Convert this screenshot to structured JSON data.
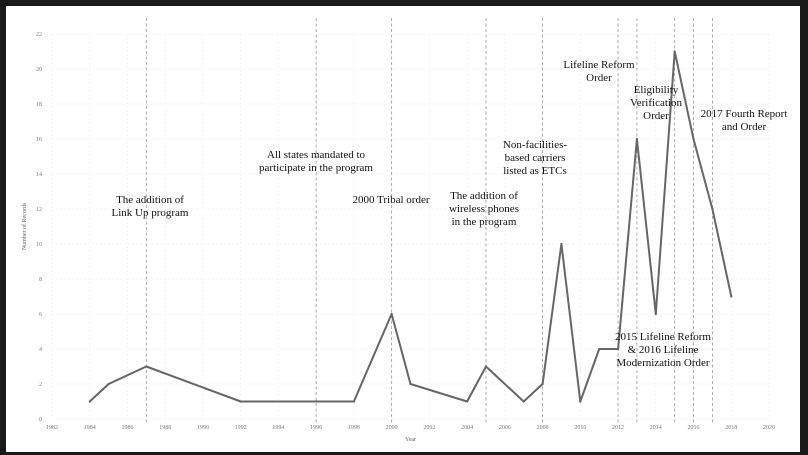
{
  "chart_data": {
    "type": "line",
    "xlabel": "Year",
    "ylabel": "Number of Records",
    "xlim": [
      1982,
      2020
    ],
    "ylim": [
      0,
      22
    ],
    "x_ticks": [
      1982,
      1984,
      1986,
      1988,
      1990,
      1992,
      1994,
      1996,
      1998,
      2000,
      2002,
      2004,
      2006,
      2008,
      2010,
      2012,
      2014,
      2016,
      2018,
      2020
    ],
    "y_ticks": [
      0,
      2,
      4,
      6,
      8,
      10,
      12,
      14,
      16,
      18,
      20,
      22
    ],
    "grid": true,
    "series_color": "#666666",
    "x": [
      1984,
      1985,
      1987,
      1992,
      1998,
      2000,
      2001,
      2004,
      2005,
      2007,
      2008,
      2009,
      2010,
      2011,
      2012,
      2013,
      2014,
      2015,
      2016,
      2017,
      2018
    ],
    "values": [
      1,
      2,
      3,
      1,
      1,
      6,
      2,
      1,
      3,
      1,
      2,
      10,
      1,
      4,
      4,
      16,
      6,
      21,
      16,
      12,
      7
    ],
    "events": [
      {
        "year": 1987,
        "label_lines": [
          "The addition of",
          "Link Up program"
        ]
      },
      {
        "year": 1996,
        "label_lines": [
          "All states mandated to",
          "participate in the program"
        ]
      },
      {
        "year": 2000,
        "label_lines": [
          "2000 Tribal order"
        ]
      },
      {
        "year": 2005,
        "label_lines": [
          "The addition of",
          "wireless phones",
          "in the program"
        ]
      },
      {
        "year": 2008,
        "label_lines": [
          "Non-facilities-",
          "based carriers",
          "listed as ETCs"
        ]
      },
      {
        "year": 2012,
        "label_lines": [
          "Lifeline Reform",
          "Order"
        ]
      },
      {
        "year": 2013,
        "label_lines": [
          "Eligibility",
          "Verification",
          "Order"
        ]
      },
      {
        "year": 2015,
        "label_lines": [
          "2015 Lifeline Reform",
          "& 2016 Lifeline",
          "Modernization Order"
        ]
      },
      {
        "year": 2016,
        "label_lines": []
      },
      {
        "year": 2017,
        "label_lines": [
          "2017 Fourth Report",
          "and Order"
        ]
      }
    ]
  }
}
